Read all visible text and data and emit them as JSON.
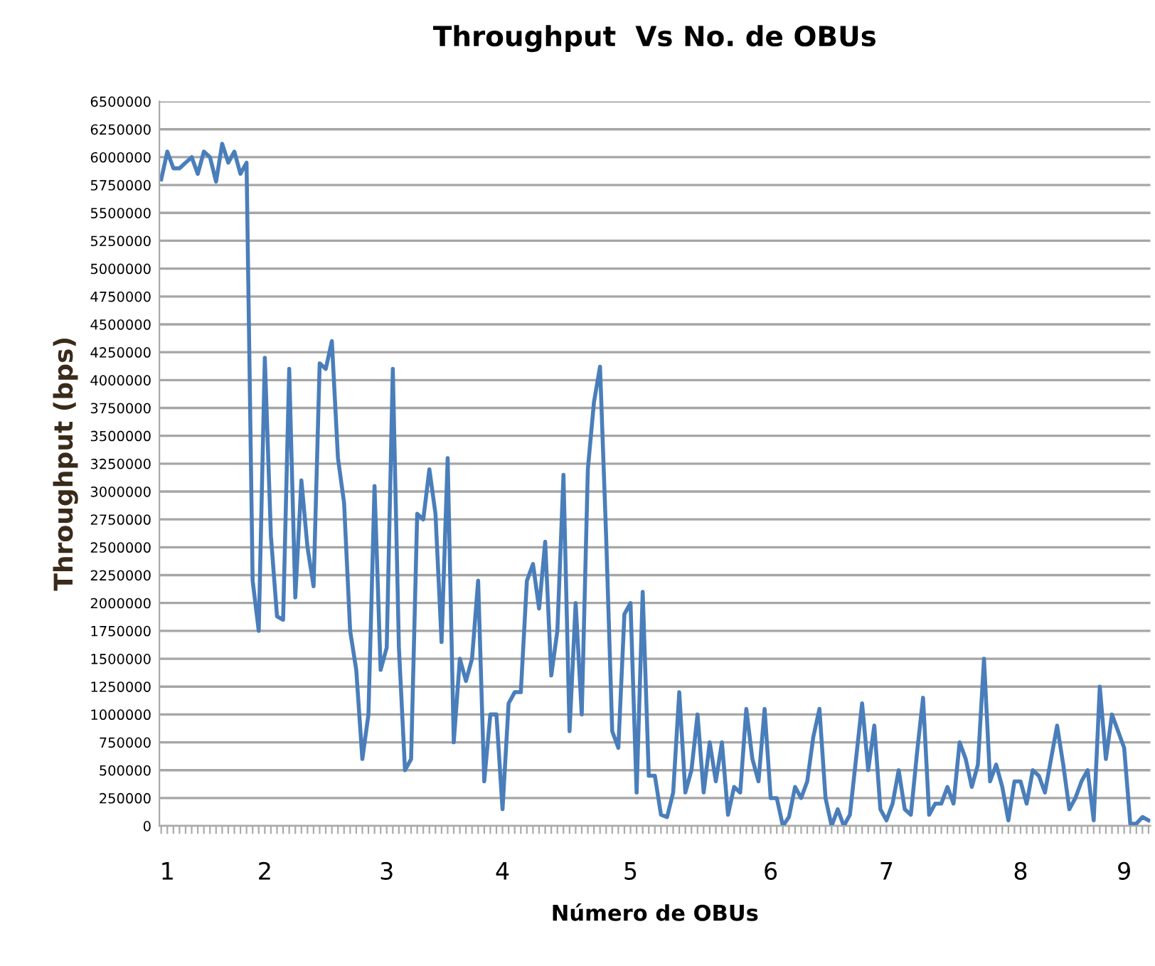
{
  "chart_data": {
    "type": "line",
    "title": "Throughput  Vs No. de OBUs",
    "xlabel": "Número de OBUs",
    "ylabel": "Throughput (bps)",
    "categories": [
      null,
      "1",
      null,
      null,
      null,
      null,
      null,
      null,
      null,
      null,
      null,
      null,
      null,
      null,
      null,
      null,
      null,
      "2",
      null,
      null,
      null,
      null,
      null,
      null,
      null,
      null,
      null,
      null,
      null,
      null,
      null,
      null,
      null,
      null,
      null,
      null,
      null,
      "3",
      null,
      null,
      null,
      null,
      null,
      null,
      null,
      null,
      null,
      null,
      null,
      null,
      null,
      null,
      null,
      null,
      null,
      null,
      "4",
      null,
      null,
      null,
      null,
      null,
      null,
      null,
      null,
      null,
      null,
      null,
      null,
      null,
      null,
      null,
      null,
      null,
      null,
      null,
      null,
      "5",
      null,
      null,
      null,
      null,
      null,
      null,
      null,
      null,
      null,
      null,
      null,
      null,
      null,
      null,
      null,
      null,
      null,
      null,
      null,
      null,
      null,
      null,
      "6",
      null,
      null,
      null,
      null,
      null,
      null,
      null,
      null,
      null,
      null,
      null,
      null,
      null,
      null,
      null,
      null,
      null,
      null,
      "7",
      null,
      null,
      null,
      null,
      null,
      null,
      null,
      null,
      null,
      null,
      null,
      null,
      null,
      null,
      null,
      null,
      null,
      null,
      null,
      null,
      null,
      "8",
      null,
      null,
      null,
      null,
      null,
      null,
      null,
      null,
      null,
      null,
      null,
      null,
      null,
      null,
      null,
      null,
      "9",
      null,
      null,
      null,
      null
    ],
    "series": [
      {
        "color": "#4a7ebb",
        "values": [
          5800000,
          6050000,
          5900000,
          5900000,
          5950000,
          6000000,
          5850000,
          6050000,
          6000000,
          5780000,
          6120000,
          5950000,
          6050000,
          5850000,
          5950000,
          2200000,
          1750000,
          4200000,
          2600000,
          1880000,
          1850000,
          4100000,
          2050000,
          3100000,
          2500000,
          2150000,
          4150000,
          4100000,
          4350000,
          3300000,
          2900000,
          1750000,
          1400000,
          600000,
          1000000,
          3050000,
          1400000,
          1600000,
          4100000,
          1600000,
          500000,
          600000,
          2800000,
          2750000,
          3200000,
          2800000,
          1650000,
          3300000,
          750000,
          1500000,
          1300000,
          1500000,
          2200000,
          400000,
          1000000,
          1000000,
          150000,
          1100000,
          1200000,
          1200000,
          2200000,
          2350000,
          1950000,
          2550000,
          1350000,
          1750000,
          3150000,
          850000,
          2000000,
          1000000,
          3200000,
          3800000,
          4120000,
          2600000,
          850000,
          700000,
          1900000,
          2000000,
          300000,
          2100000,
          450000,
          450000,
          100000,
          80000,
          300000,
          1200000,
          300000,
          500000,
          1000000,
          300000,
          750000,
          400000,
          750000,
          100000,
          350000,
          300000,
          1050000,
          600000,
          400000,
          1050000,
          250000,
          250000,
          0,
          80000,
          350000,
          250000,
          400000,
          800000,
          1050000,
          250000,
          0,
          150000,
          0,
          100000,
          600000,
          1100000,
          500000,
          900000,
          150000,
          50000,
          200000,
          500000,
          150000,
          100000,
          650000,
          1150000,
          100000,
          200000,
          200000,
          350000,
          200000,
          750000,
          600000,
          350000,
          550000,
          1500000,
          400000,
          550000,
          350000,
          50000,
          400000,
          400000,
          200000,
          500000,
          450000,
          300000,
          600000,
          900000,
          550000,
          150000,
          250000,
          400000,
          500000,
          50000,
          1250000,
          600000,
          1000000,
          850000,
          700000,
          20000,
          20000,
          80000,
          50000
        ]
      }
    ],
    "ylim": [
      0,
      6500000
    ],
    "yticks": [
      0,
      250000,
      500000,
      750000,
      1000000,
      1250000,
      1500000,
      1750000,
      2000000,
      2250000,
      2500000,
      2750000,
      3000000,
      3250000,
      3500000,
      3750000,
      4000000,
      4250000,
      4500000,
      4750000,
      5000000,
      5250000,
      5500000,
      5750000,
      6000000,
      6250000,
      6500000
    ],
    "grid": "y",
    "marker": "none",
    "line_style": "solid"
  }
}
